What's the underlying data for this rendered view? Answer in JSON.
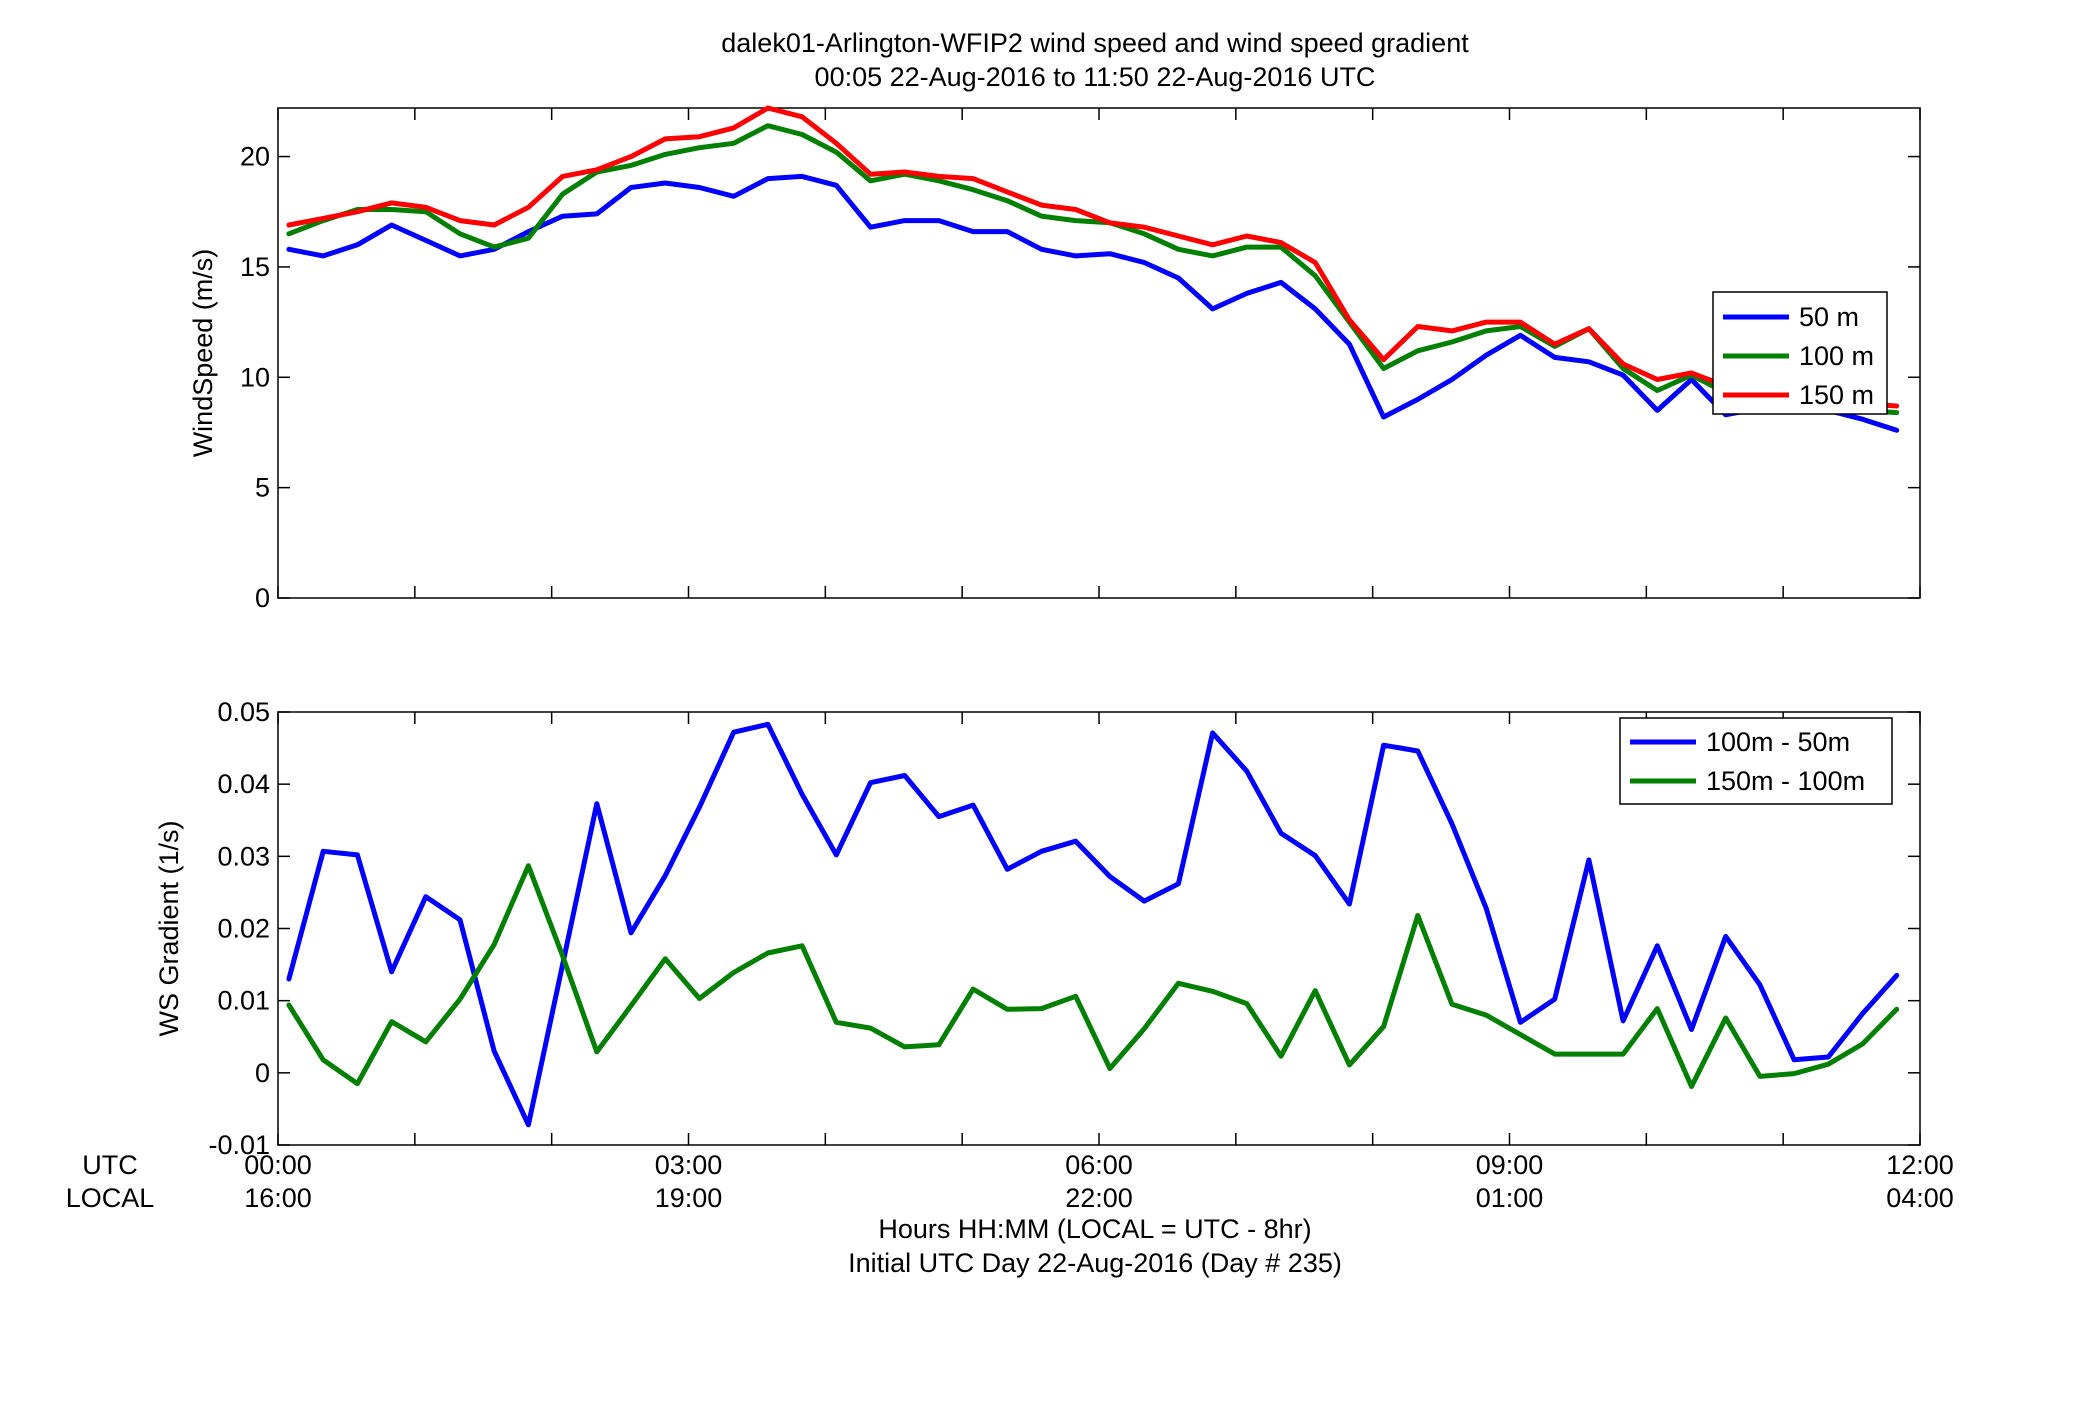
{
  "figure": {
    "title_line1": "dalek01-Arlington-WFIP2  wind speed and wind speed gradient",
    "title_line2": "00:05 22-Aug-2016 to 11:50 22-Aug-2016  UTC",
    "row_label_utc": "UTC",
    "row_label_local": "LOCAL",
    "xlabel_line1": "Hours HH:MM  (LOCAL = UTC - 8hr)",
    "xlabel_line2": "Initial UTC Day 22-Aug-2016 (Day # 235)",
    "colors": {
      "blue": "#0000ff",
      "green": "#007f00",
      "red": "#ff0000"
    }
  },
  "chart_data": [
    {
      "type": "line",
      "title": "",
      "xlabel": "",
      "ylabel": "WindSpeed (m/s)",
      "xlim": [
        0,
        12
      ],
      "ylim": [
        0,
        22.2
      ],
      "yticks": [
        0,
        5,
        10,
        15,
        20
      ],
      "yticklabels": [
        "0",
        "5",
        "10",
        "15",
        "20"
      ],
      "grid": false,
      "legend_position": "right",
      "x": [
        0.08,
        0.33,
        0.58,
        0.83,
        1.08,
        1.33,
        1.58,
        1.83,
        2.08,
        2.33,
        2.58,
        2.83,
        3.08,
        3.33,
        3.58,
        3.83,
        4.08,
        4.33,
        4.58,
        4.83,
        5.08,
        5.33,
        5.58,
        5.83,
        6.08,
        6.33,
        6.58,
        6.83,
        7.08,
        7.33,
        7.58,
        7.83,
        8.08,
        8.33,
        8.58,
        8.83,
        9.08,
        9.33,
        9.58,
        9.83,
        10.08,
        10.33,
        10.58,
        10.83,
        11.08,
        11.33,
        11.58,
        11.83
      ],
      "series": [
        {
          "name": "50 m",
          "color": "#0000ff",
          "values": [
            15.8,
            15.5,
            16.0,
            16.9,
            16.2,
            15.5,
            15.8,
            16.6,
            17.3,
            17.4,
            18.6,
            18.8,
            18.6,
            18.2,
            19.0,
            19.1,
            18.7,
            16.8,
            17.1,
            17.1,
            16.6,
            16.6,
            15.8,
            15.5,
            15.6,
            15.2,
            14.5,
            13.1,
            13.8,
            14.3,
            13.1,
            11.5,
            8.2,
            9.0,
            9.9,
            11.0,
            11.9,
            10.9,
            10.7,
            10.1,
            8.5,
            9.9,
            8.3,
            8.6,
            9.0,
            8.5,
            8.1,
            7.6
          ]
        },
        {
          "name": "100 m",
          "color": "#007f00",
          "values": [
            16.5,
            17.1,
            17.6,
            17.6,
            17.5,
            16.5,
            15.9,
            16.3,
            18.3,
            19.3,
            19.6,
            20.1,
            20.4,
            20.6,
            21.4,
            21.0,
            20.2,
            18.9,
            19.2,
            18.9,
            18.5,
            18.0,
            17.3,
            17.1,
            17.0,
            16.5,
            15.8,
            15.5,
            15.9,
            15.9,
            14.6,
            12.5,
            10.4,
            11.2,
            11.6,
            12.1,
            12.3,
            11.4,
            12.2,
            10.4,
            9.4,
            10.1,
            9.3,
            9.1,
            8.9,
            8.8,
            8.5,
            8.4
          ]
        },
        {
          "name": "150 m",
          "color": "#ff0000",
          "values": [
            16.9,
            17.2,
            17.5,
            17.9,
            17.7,
            17.1,
            16.9,
            17.7,
            19.1,
            19.4,
            20.0,
            20.8,
            20.9,
            21.3,
            22.2,
            21.8,
            20.6,
            19.2,
            19.3,
            19.1,
            19.0,
            18.4,
            17.8,
            17.6,
            17.0,
            16.8,
            16.4,
            16.0,
            16.4,
            16.1,
            15.2,
            12.6,
            10.8,
            12.3,
            12.1,
            12.5,
            12.5,
            11.5,
            12.2,
            10.6,
            9.9,
            10.2,
            9.6,
            9.4,
            9.1,
            8.9,
            8.8,
            8.7
          ]
        }
      ]
    },
    {
      "type": "line",
      "title": "",
      "xlabel": "",
      "ylabel": "WS Gradient (1/s)",
      "xlim": [
        0,
        12
      ],
      "ylim": [
        -0.01,
        0.05
      ],
      "yticks": [
        -0.01,
        0,
        0.01,
        0.02,
        0.03,
        0.04,
        0.05
      ],
      "yticklabels": [
        "-0.01",
        "0",
        "0.01",
        "0.02",
        "0.03",
        "0.04",
        "0.05"
      ],
      "xticks": [
        0,
        3,
        6,
        9,
        12
      ],
      "xticklabels_utc": [
        "00:00",
        "03:00",
        "06:00",
        "09:00",
        "12:00"
      ],
      "xticklabels_local": [
        "16:00",
        "19:00",
        "22:00",
        "01:00",
        "04:00"
      ],
      "grid": false,
      "legend_position": "top-right",
      "x": [
        0.08,
        0.33,
        0.58,
        0.83,
        1.08,
        1.33,
        1.58,
        1.83,
        2.08,
        2.33,
        2.58,
        2.83,
        3.08,
        3.33,
        3.58,
        3.83,
        4.08,
        4.33,
        4.58,
        4.83,
        5.08,
        5.33,
        5.58,
        5.83,
        6.08,
        6.33,
        6.58,
        6.83,
        7.08,
        7.33,
        7.58,
        7.83,
        8.08,
        8.33,
        8.58,
        8.83,
        9.08,
        9.33,
        9.58,
        9.83,
        10.08,
        10.33,
        10.58,
        10.83,
        11.08,
        11.33,
        11.58,
        11.83
      ],
      "series": [
        {
          "name": "100m - 50m",
          "color": "#0000ff",
          "values": [
            0.013,
            0.0307,
            0.0302,
            0.014,
            0.0244,
            0.0212,
            0.003,
            -0.0072,
            0.015,
            0.0373,
            0.0194,
            0.0273,
            0.0368,
            0.0472,
            0.0483,
            0.0386,
            0.0302,
            0.0402,
            0.0412,
            0.0355,
            0.0371,
            0.0282,
            0.0307,
            0.0321,
            0.0272,
            0.0238,
            0.0262,
            0.0471,
            0.0418,
            0.0332,
            0.0301,
            0.0234,
            0.0454,
            0.0446,
            0.0345,
            0.0228,
            0.007,
            0.0102,
            0.0295,
            0.0072,
            0.0176,
            0.006,
            0.0189,
            0.0122,
            0.0018,
            0.0022,
            0.0082,
            0.0135
          ]
        },
        {
          "name": "150m - 100m",
          "color": "#007f00",
          "values": [
            0.0094,
            0.0018,
            -0.0015,
            0.0071,
            0.0043,
            0.0102,
            0.0178,
            0.0287,
            0.0162,
            0.0029,
            0.0093,
            0.0158,
            0.0103,
            0.0139,
            0.0166,
            0.0176,
            0.007,
            0.0062,
            0.0036,
            0.0039,
            0.0116,
            0.0088,
            0.0089,
            0.0106,
            0.0006,
            0.0061,
            0.0124,
            0.0113,
            0.0096,
            0.0023,
            0.0114,
            0.0011,
            0.0064,
            0.0218,
            0.0095,
            0.008,
            0.0053,
            0.0026,
            0.0026,
            0.0026,
            0.0089,
            -0.0019,
            0.0076,
            -0.0005,
            -0.0001,
            0.0012,
            0.004,
            0.0088
          ]
        }
      ]
    }
  ]
}
